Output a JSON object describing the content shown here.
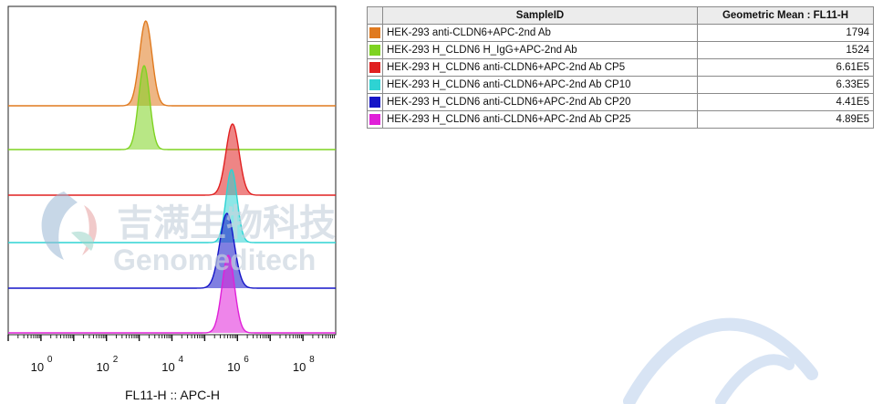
{
  "chart_data": {
    "type": "histogram",
    "layout": "staggered offset overlay",
    "xlabel": "FL11-H :: APC-H",
    "x_scale": "log",
    "x_ticks": [
      {
        "base": "10",
        "exp": "0"
      },
      {
        "base": "10",
        "exp": "2"
      },
      {
        "base": "10",
        "exp": "4"
      },
      {
        "base": "10",
        "exp": "6"
      },
      {
        "base": "10",
        "exp": "8"
      }
    ],
    "series": [
      {
        "name": "HEK-293 anti-CLDN6+APC-2nd Ab",
        "geometric_mean": "1794",
        "peak_log10": 3.2,
        "color": "#e07a1f"
      },
      {
        "name": "HEK-293 H_CLDN6 H_IgG+APC-2nd Ab",
        "geometric_mean": "1524",
        "peak_log10": 3.15,
        "color": "#7ed321"
      },
      {
        "name": "HEK-293 H_CLDN6 anti-CLDN6+APC-2nd Ab CP5",
        "geometric_mean": "6.61E5",
        "peak_log10": 5.85,
        "color": "#e02020"
      },
      {
        "name": "HEK-293 H_CLDN6 anti-CLDN6+APC-2nd Ab CP10",
        "geometric_mean": "6.33E5",
        "peak_log10": 5.82,
        "color": "#2ed3d3"
      },
      {
        "name": "HEK-293 H_CLDN6 anti-CLDN6+APC-2nd Ab CP20",
        "geometric_mean": "4.41E5",
        "peak_log10": 5.68,
        "color": "#1515c8"
      },
      {
        "name": "HEK-293 H_CLDN6 anti-CLDN6+APC-2nd Ab CP25",
        "geometric_mean": "4.89E5",
        "peak_log10": 5.72,
        "color": "#e020d8"
      }
    ],
    "legend": {
      "placement": "top-right",
      "headers": [
        "SampleID",
        "Geometric Mean : FL11-H"
      ]
    }
  },
  "watermark": {
    "cn": "吉满生物科技",
    "en": "Genomeditech"
  }
}
